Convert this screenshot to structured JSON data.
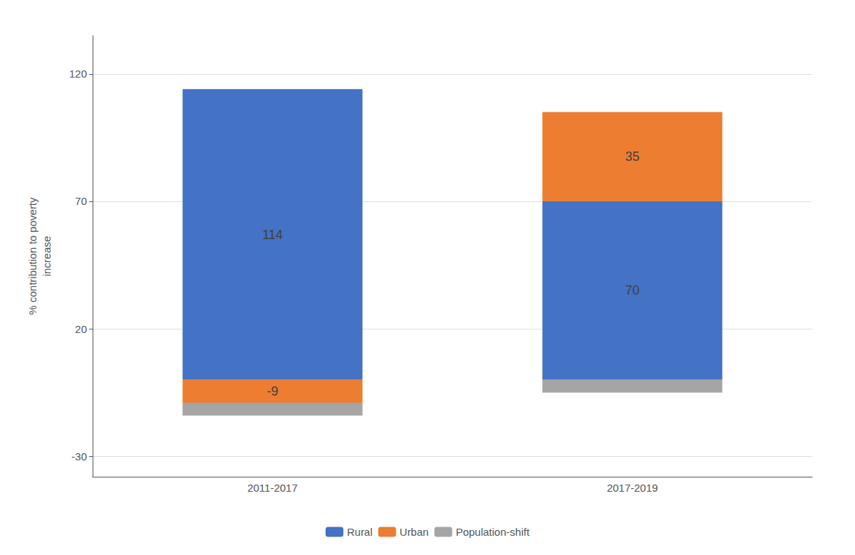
{
  "chart_data": {
    "type": "bar",
    "categories": [
      "2011-2017",
      "2017-2019"
    ],
    "series": [
      {
        "name": "Rural",
        "color": "#4472C4",
        "values": [
          114,
          70
        ],
        "data_labels": true
      },
      {
        "name": "Urban",
        "color": "#ED7D31",
        "values": [
          -9,
          35
        ],
        "data_labels": true
      },
      {
        "name": "Population-shift",
        "color": "#A5A5A5",
        "values": [
          -5,
          -5
        ]
      }
    ],
    "stacked": true,
    "ylabel": [
      "% contribution to poverty",
      "increase"
    ],
    "ylim": [
      -38,
      135
    ],
    "yticks": [
      -30,
      20,
      70,
      120
    ],
    "grid": true,
    "legend": "bottom"
  }
}
